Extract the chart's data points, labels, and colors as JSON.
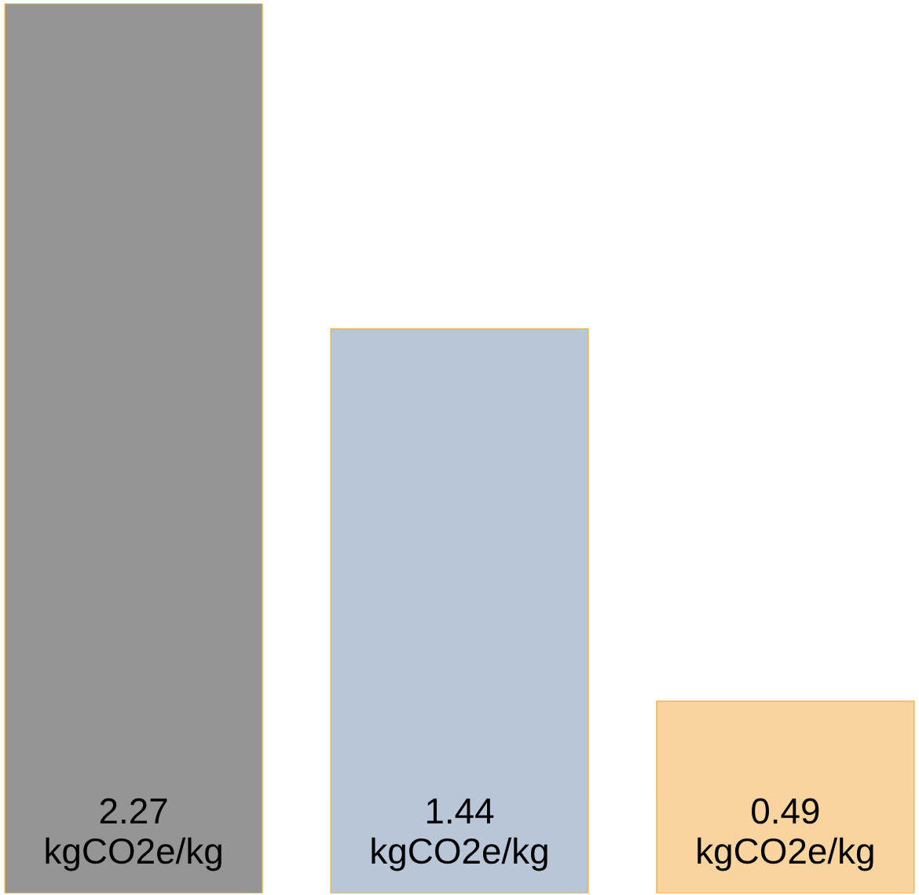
{
  "chart_data": {
    "type": "bar",
    "categories": [
      null,
      null,
      null
    ],
    "values": [
      2.27,
      1.44,
      0.49
    ],
    "colors": [
      "#959595",
      "#b8c6d7",
      "#f9d49f"
    ],
    "value_labels": [
      "2.27\nkgCO2e/kg",
      "1.44\nkgCO2e/kg",
      "0.49\nkgCO2e/kg"
    ],
    "grid": false,
    "legend": false
  }
}
